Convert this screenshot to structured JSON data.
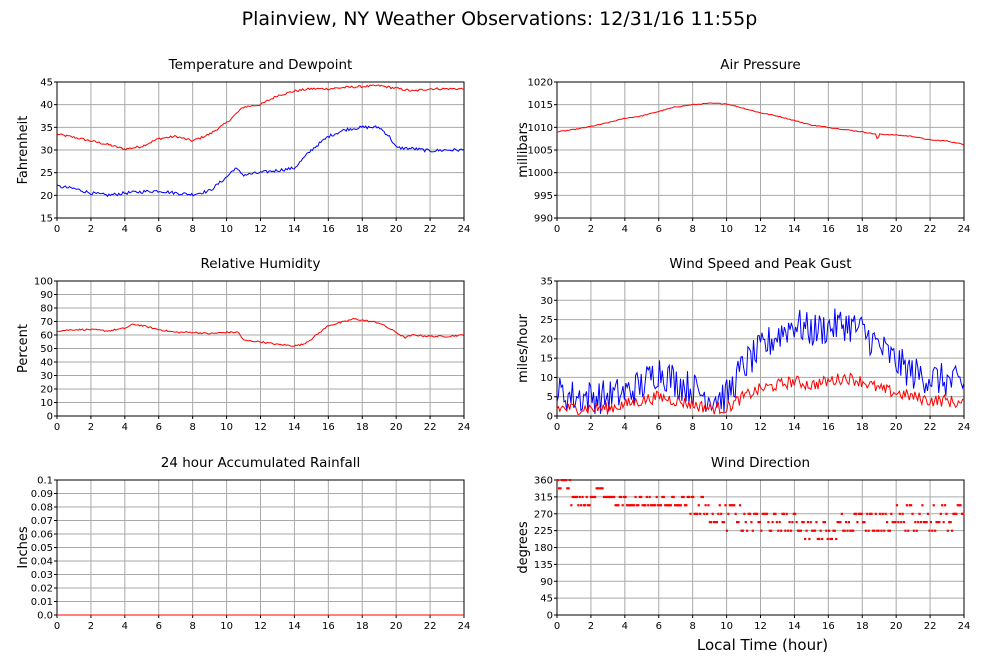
{
  "page": {
    "title": "Plainview, NY Weather Observations: 12/31/16 11:55p",
    "xlabel": "Local Time (hour)"
  },
  "chart_data": [
    {
      "id": "temp",
      "type": "line",
      "title": "Temperature and Dewpoint",
      "ylabel": "Fahrenheit",
      "xlim": [
        0,
        24
      ],
      "ylim": [
        15,
        45
      ],
      "xticks": [
        0,
        2,
        4,
        6,
        8,
        10,
        12,
        14,
        16,
        18,
        20,
        22,
        24
      ],
      "yticks": [
        15,
        20,
        25,
        30,
        35,
        40,
        45
      ],
      "ytick_labels": [
        "15",
        "20",
        "25",
        "30",
        "35",
        "40",
        "45"
      ],
      "grid": true,
      "series": [
        {
          "color": "#ff0000",
          "noise": 0.25,
          "x": [
            0,
            1,
            2,
            3,
            4,
            5,
            6,
            7,
            7.5,
            8,
            9,
            10,
            11,
            12,
            13,
            14,
            15,
            16,
            17,
            18,
            19,
            20,
            21,
            22,
            23,
            24
          ],
          "y": [
            33.5,
            32.8,
            32,
            31.2,
            30.2,
            30.8,
            32.5,
            33,
            32.5,
            32,
            33.5,
            36,
            39.5,
            40,
            42,
            43,
            43.5,
            43.5,
            43.8,
            44,
            44.2,
            43.6,
            43,
            43.5,
            43.5,
            43.5
          ]
        },
        {
          "color": "#0000ff",
          "noise": 0.35,
          "x": [
            0,
            1,
            2,
            3,
            4,
            5,
            6,
            7,
            8,
            9,
            10,
            10.5,
            11,
            12,
            13,
            14,
            15,
            16,
            17,
            18,
            19,
            19.6,
            20,
            21,
            22,
            23,
            24
          ],
          "y": [
            22,
            21.5,
            20.5,
            20,
            20.5,
            20.8,
            21,
            20.5,
            20.2,
            21,
            24,
            26,
            24.5,
            25,
            25.5,
            26,
            30,
            33,
            34.5,
            35,
            35,
            33,
            30.5,
            30.3,
            29.8,
            30,
            30
          ]
        }
      ]
    },
    {
      "id": "pressure",
      "type": "line",
      "title": "Air Pressure",
      "ylabel": "millibars",
      "xlim": [
        0,
        24
      ],
      "ylim": [
        990,
        1020
      ],
      "xticks": [
        0,
        2,
        4,
        6,
        8,
        10,
        12,
        14,
        16,
        18,
        20,
        22,
        24
      ],
      "yticks": [
        990,
        995,
        1000,
        1005,
        1010,
        1015,
        1020
      ],
      "ytick_labels": [
        "990",
        "995",
        "1000",
        "1005",
        "1010",
        "1015",
        "1020"
      ],
      "grid": true,
      "series": [
        {
          "color": "#ff0000",
          "noise": 0.1,
          "x": [
            0,
            1,
            2,
            3,
            4,
            5,
            6,
            7,
            8,
            9,
            10,
            11,
            12,
            13,
            14,
            15,
            16,
            17,
            18,
            18.8,
            18.9,
            19,
            20,
            21,
            22,
            23,
            24
          ],
          "y": [
            1009,
            1009.5,
            1010.2,
            1011,
            1012,
            1012.5,
            1013.5,
            1014.5,
            1015,
            1015.3,
            1015.2,
            1014.2,
            1013.2,
            1012.5,
            1011.5,
            1010.5,
            1010,
            1009.5,
            1009,
            1008.5,
            1007,
            1008.5,
            1008.3,
            1008,
            1007.2,
            1007,
            1006.2
          ]
        }
      ]
    },
    {
      "id": "humidity",
      "type": "line",
      "title": "Relative Humidity",
      "ylabel": "Percent",
      "xlim": [
        0,
        24
      ],
      "ylim": [
        0,
        100
      ],
      "xticks": [
        0,
        2,
        4,
        6,
        8,
        10,
        12,
        14,
        16,
        18,
        20,
        22,
        24
      ],
      "yticks": [
        0,
        10,
        20,
        30,
        40,
        50,
        60,
        70,
        80,
        90,
        100
      ],
      "ytick_labels": [
        "0",
        "10",
        "20",
        "30",
        "40",
        "50",
        "60",
        "70",
        "80",
        "90",
        "100"
      ],
      "grid": true,
      "series": [
        {
          "color": "#ff0000",
          "noise": 0.6,
          "x": [
            0,
            1,
            2,
            3,
            4,
            4.5,
            5,
            6,
            7,
            8,
            9,
            10,
            10.7,
            11,
            12,
            13,
            14,
            14.5,
            15,
            16,
            17,
            17.5,
            18,
            19,
            20,
            20.5,
            21,
            22,
            23,
            24
          ],
          "y": [
            63,
            64,
            64,
            63,
            65,
            68,
            67,
            64,
            62,
            62,
            61,
            62,
            62,
            56,
            55,
            53,
            52,
            53,
            57,
            67,
            70,
            72,
            71,
            69,
            62,
            58,
            60,
            59,
            59,
            60
          ]
        }
      ]
    },
    {
      "id": "wind",
      "type": "line",
      "title": "Wind Speed and Peak Gust",
      "ylabel": "miles/hour",
      "xlim": [
        0,
        24
      ],
      "ylim": [
        0,
        35
      ],
      "xticks": [
        0,
        2,
        4,
        6,
        8,
        10,
        12,
        14,
        16,
        18,
        20,
        22,
        24
      ],
      "yticks": [
        0,
        5,
        10,
        15,
        20,
        25,
        30,
        35
      ],
      "ytick_labels": [
        "0",
        "5",
        "10",
        "15",
        "20",
        "25",
        "30",
        "35"
      ],
      "grid": true,
      "series": [
        {
          "color": "#0000ff",
          "noise": 4.5,
          "x": [
            0,
            1,
            2,
            3,
            4,
            5,
            6,
            7,
            8,
            9,
            10,
            11,
            12,
            13,
            14,
            15,
            16,
            17,
            18,
            19,
            20,
            21,
            22,
            23,
            24
          ],
          "y": [
            6,
            5,
            5,
            5,
            6,
            8,
            12,
            9,
            7,
            5,
            5,
            13,
            17,
            21,
            24,
            22,
            23,
            24,
            22,
            18,
            14,
            11,
            10,
            9,
            8
          ]
        },
        {
          "color": "#ff0000",
          "noise": 1.6,
          "x": [
            0,
            1,
            2,
            3,
            4,
            5,
            6,
            7,
            8,
            9,
            10,
            11,
            12,
            13,
            14,
            15,
            16,
            17,
            18,
            19,
            20,
            21,
            22,
            23,
            24
          ],
          "y": [
            2,
            2,
            2,
            2,
            3,
            4,
            5,
            4,
            3,
            2,
            2,
            5,
            7,
            8,
            9,
            8,
            9,
            10,
            9,
            7,
            6,
            5,
            4,
            4,
            3
          ]
        }
      ]
    },
    {
      "id": "rain",
      "type": "line",
      "title": "24 hour Accumulated Rainfall",
      "ylabel": "Inches",
      "xlim": [
        0,
        24
      ],
      "ylim": [
        0,
        0.1
      ],
      "xticks": [
        0,
        2,
        4,
        6,
        8,
        10,
        12,
        14,
        16,
        18,
        20,
        22,
        24
      ],
      "yticks": [
        0,
        0.01,
        0.02,
        0.03,
        0.04,
        0.05,
        0.06,
        0.07,
        0.08,
        0.09,
        0.1
      ],
      "ytick_labels": [
        "0.0",
        "0.01",
        "0.02",
        "0.03",
        "0.04",
        "0.05",
        "0.06",
        "0.07",
        "0.08",
        "0.09",
        "0.1"
      ],
      "grid": true,
      "series": [
        {
          "color": "#ff0000",
          "noise": 0,
          "x": [
            0,
            24
          ],
          "y": [
            0,
            0
          ]
        }
      ]
    },
    {
      "id": "direction",
      "type": "scatter",
      "title": "Wind Direction",
      "ylabel": "degrees",
      "xlim": [
        0,
        24
      ],
      "ylim": [
        0,
        360
      ],
      "xticks": [
        0,
        2,
        4,
        6,
        8,
        10,
        12,
        14,
        16,
        18,
        20,
        22,
        24
      ],
      "yticks": [
        0,
        45,
        90,
        135,
        180,
        225,
        270,
        315,
        360
      ],
      "ytick_labels": [
        "0",
        "45",
        "90",
        "135",
        "180",
        "225",
        "270",
        "315",
        "360"
      ],
      "grid": true,
      "color": "#ff0000",
      "segments": [
        {
          "x0": 0.0,
          "x1": 0.8,
          "values": [
            360,
            338
          ]
        },
        {
          "x0": 0.8,
          "x1": 2.2,
          "values": [
            315,
            293
          ]
        },
        {
          "x0": 2.2,
          "x1": 2.9,
          "values": [
            338,
            315
          ]
        },
        {
          "x0": 2.9,
          "x1": 4.5,
          "values": [
            315,
            293
          ]
        },
        {
          "x0": 4.5,
          "x1": 5.5,
          "values": [
            315,
            293
          ]
        },
        {
          "x0": 5.5,
          "x1": 7.5,
          "values": [
            315,
            293
          ]
        },
        {
          "x0": 7.5,
          "x1": 8.8,
          "values": [
            293,
            270,
            315
          ]
        },
        {
          "x0": 8.8,
          "x1": 9.8,
          "values": [
            270,
            293,
            248
          ]
        },
        {
          "x0": 9.8,
          "x1": 11.0,
          "values": [
            248,
            225,
            270,
            293
          ]
        },
        {
          "x0": 11.0,
          "x1": 13.0,
          "values": [
            248,
            270,
            225
          ]
        },
        {
          "x0": 13.0,
          "x1": 14.5,
          "values": [
            225,
            248,
            270
          ]
        },
        {
          "x0": 14.5,
          "x1": 16.5,
          "values": [
            225,
            248,
            203
          ]
        },
        {
          "x0": 16.5,
          "x1": 19.5,
          "values": [
            248,
            225,
            270
          ]
        },
        {
          "x0": 19.5,
          "x1": 21.0,
          "values": [
            270,
            293,
            248,
            225
          ]
        },
        {
          "x0": 21.0,
          "x1": 24.0,
          "values": [
            248,
            270,
            225,
            293
          ]
        }
      ]
    }
  ]
}
